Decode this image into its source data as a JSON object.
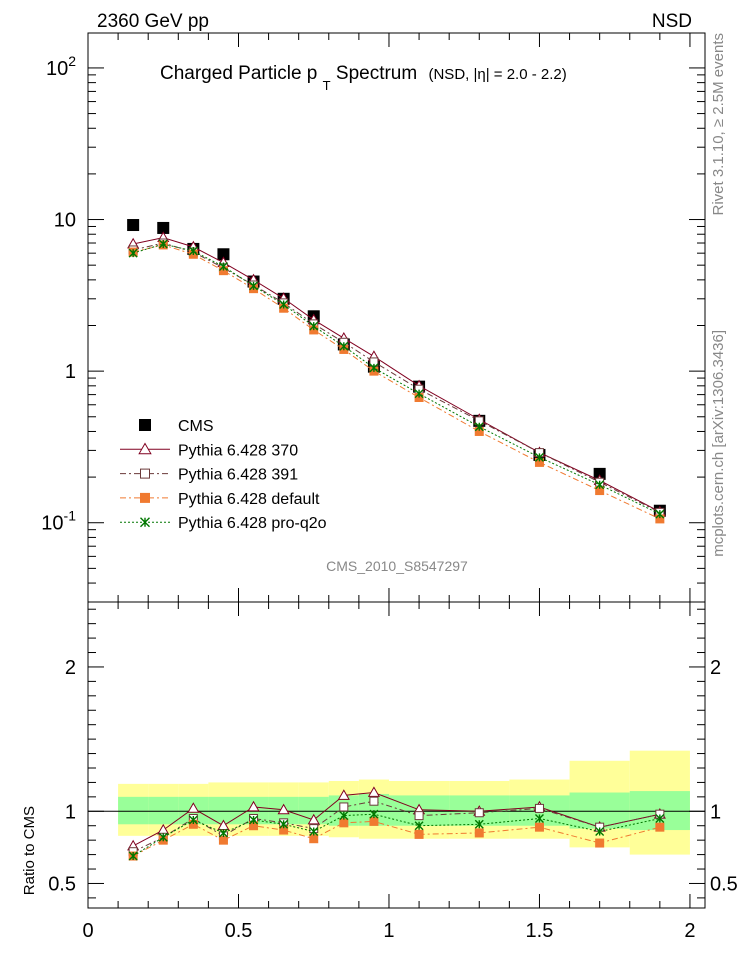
{
  "header": {
    "energy_label": "2360 GeV pp",
    "process_label": "NSD",
    "side_label_top": "Rivet 3.1.10, ≥ 2.5M events",
    "side_label_bottom": "mcplots.cern.ch [arXiv:1306.3436]",
    "analysis_id": "CMS_2010_S8547297"
  },
  "chart_data": [
    {
      "type": "scatter",
      "title_main": "Charged Particle p",
      "title_sub": "T",
      "title_tail": " Spectrum",
      "title_note": "(NSD, |η| = 2.0 - 2.2)",
      "yscale": "log",
      "xlim": [
        0,
        2.05
      ],
      "ylim": [
        0.03,
        170
      ],
      "x_tick_labels": [
        "0",
        "0.5",
        "1",
        "1.5",
        "2"
      ],
      "y_tick_labels": [
        "10^-1",
        "1",
        "10",
        "10^2"
      ],
      "legend_position": "bottom-left",
      "x": [
        0.15,
        0.25,
        0.35,
        0.45,
        0.55,
        0.65,
        0.75,
        0.85,
        0.95,
        1.1,
        1.3,
        1.5,
        1.7,
        1.9
      ],
      "series": [
        {
          "name": "CMS",
          "color": "#000000",
          "values": [
            9.2,
            8.8,
            6.4,
            5.9,
            3.9,
            3.0,
            2.3,
            1.5,
            1.07,
            0.79,
            0.47,
            0.28,
            0.21,
            0.12
          ]
        },
        {
          "name": "Pythia 6.428 370",
          "color": "#800020",
          "values": [
            6.9,
            7.6,
            6.6,
            5.2,
            4.0,
            3.02,
            2.18,
            1.65,
            1.25,
            0.8,
            0.48,
            0.29,
            0.19,
            0.118
          ]
        },
        {
          "name": "Pythia 6.428 391",
          "color": "#6b3a3a",
          "values": [
            6.3,
            7.0,
            6.1,
            4.8,
            3.7,
            2.82,
            2.05,
            1.55,
            1.15,
            0.76,
            0.47,
            0.29,
            0.185,
            0.117
          ]
        },
        {
          "name": "Pythia 6.428 default",
          "color": "#f07a30",
          "values": [
            6.1,
            6.8,
            5.9,
            4.6,
            3.5,
            2.6,
            1.87,
            1.39,
            1.0,
            0.67,
            0.4,
            0.25,
            0.163,
            0.106
          ]
        },
        {
          "name": "Pythia 6.428 pro-q2o",
          "color": "#007700",
          "values": [
            6.0,
            6.9,
            6.2,
            4.9,
            3.65,
            2.75,
            1.98,
            1.46,
            1.05,
            0.71,
            0.43,
            0.27,
            0.178,
            0.114
          ]
        }
      ]
    },
    {
      "type": "line",
      "ylabel": "Ratio to CMS",
      "xlim": [
        0,
        2.05
      ],
      "ylim": [
        0.33,
        2.45
      ],
      "x_tick_labels": [
        "0",
        "0.5",
        "1",
        "1.5",
        "2"
      ],
      "y_tick_labels": [
        "0.5",
        "1",
        "2"
      ],
      "x": [
        0.15,
        0.25,
        0.35,
        0.45,
        0.55,
        0.65,
        0.75,
        0.85,
        0.95,
        1.1,
        1.3,
        1.5,
        1.7,
        1.9
      ],
      "bands": {
        "edges": [
          0.1,
          0.2,
          0.3,
          0.4,
          0.5,
          0.6,
          0.7,
          0.8,
          0.9,
          1.0,
          1.2,
          1.4,
          1.6,
          1.8,
          2.0
        ],
        "inner": [
          [
            0.91,
            1.1
          ],
          [
            0.91,
            1.1
          ],
          [
            0.91,
            1.1
          ],
          [
            0.91,
            1.1
          ],
          [
            0.91,
            1.1
          ],
          [
            0.91,
            1.1
          ],
          [
            0.91,
            1.1
          ],
          [
            0.9,
            1.11
          ],
          [
            0.9,
            1.12
          ],
          [
            0.9,
            1.11
          ],
          [
            0.9,
            1.11
          ],
          [
            0.9,
            1.11
          ],
          [
            0.88,
            1.13
          ],
          [
            0.87,
            1.14
          ]
        ],
        "outer": [
          [
            0.83,
            1.19
          ],
          [
            0.83,
            1.19
          ],
          [
            0.83,
            1.19
          ],
          [
            0.83,
            1.2
          ],
          [
            0.83,
            1.2
          ],
          [
            0.83,
            1.2
          ],
          [
            0.83,
            1.2
          ],
          [
            0.82,
            1.21
          ],
          [
            0.81,
            1.22
          ],
          [
            0.81,
            1.21
          ],
          [
            0.81,
            1.21
          ],
          [
            0.81,
            1.22
          ],
          [
            0.75,
            1.35
          ],
          [
            0.7,
            1.42
          ]
        ]
      },
      "series": [
        {
          "name": "Pythia 6.428 370",
          "values": [
            0.76,
            0.87,
            1.02,
            0.9,
            1.03,
            1.01,
            0.94,
            1.11,
            1.13,
            1.01,
            1.0,
            1.03,
            0.89,
            0.98
          ]
        },
        {
          "name": "Pythia 6.428 391",
          "values": [
            0.72,
            0.82,
            0.95,
            0.83,
            0.95,
            0.92,
            0.88,
            1.03,
            1.07,
            0.97,
            0.99,
            1.02,
            0.89,
            0.98
          ]
        },
        {
          "name": "Pythia 6.428 default",
          "values": [
            0.69,
            0.8,
            0.91,
            0.8,
            0.9,
            0.87,
            0.81,
            0.92,
            0.93,
            0.84,
            0.85,
            0.89,
            0.78,
            0.89
          ]
        },
        {
          "name": "Pythia 6.428 pro-q2o",
          "values": [
            0.69,
            0.82,
            0.94,
            0.85,
            0.94,
            0.91,
            0.86,
            0.97,
            0.98,
            0.9,
            0.91,
            0.95,
            0.86,
            0.95
          ]
        }
      ]
    }
  ]
}
